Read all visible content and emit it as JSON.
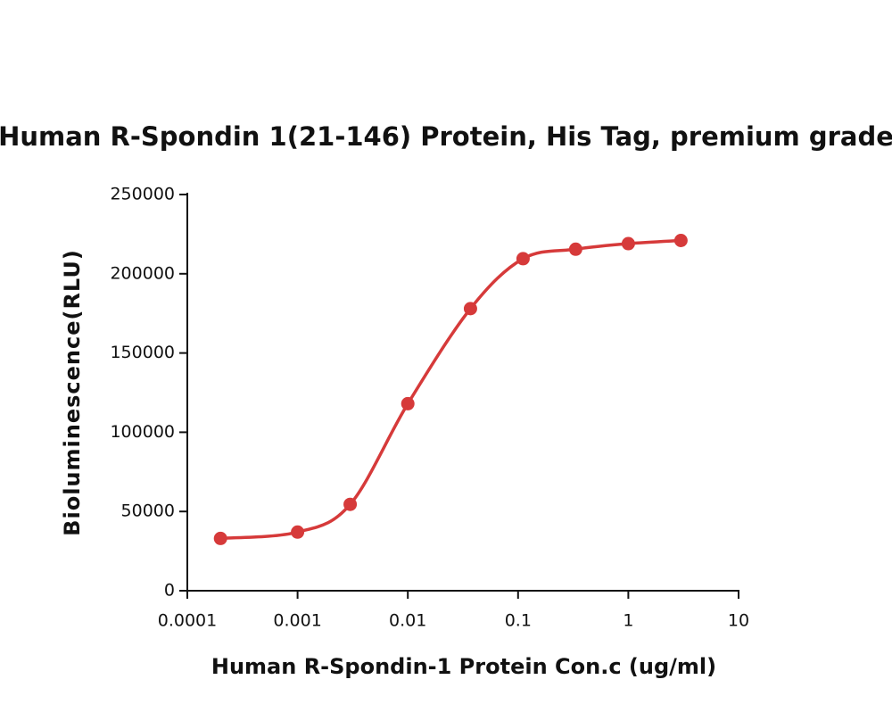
{
  "chart_data": {
    "type": "scatter_line",
    "title": "Human R-Spondin 1(21-146) Protein, His Tag, premium grade",
    "x_label": "Human R-Spondin-1 Protein Con.c (ug/ml)",
    "y_label": "Bioluminescence(RLU)",
    "x_scale": "log",
    "color": "#d63a3a",
    "x": [
      0.0002,
      0.001,
      0.003,
      0.01,
      0.037,
      0.111,
      0.333,
      1,
      3
    ],
    "values": [
      33000,
      37000,
      54500,
      118000,
      178000,
      209500,
      215500,
      219000,
      221000
    ],
    "xlim": [
      0.0001,
      10
    ],
    "xticks": [
      0.0001,
      0.001,
      0.01,
      0.1,
      1,
      10
    ],
    "ylim": [
      0,
      250000
    ],
    "yticks": [
      0,
      50000,
      100000,
      150000,
      200000,
      250000
    ]
  }
}
